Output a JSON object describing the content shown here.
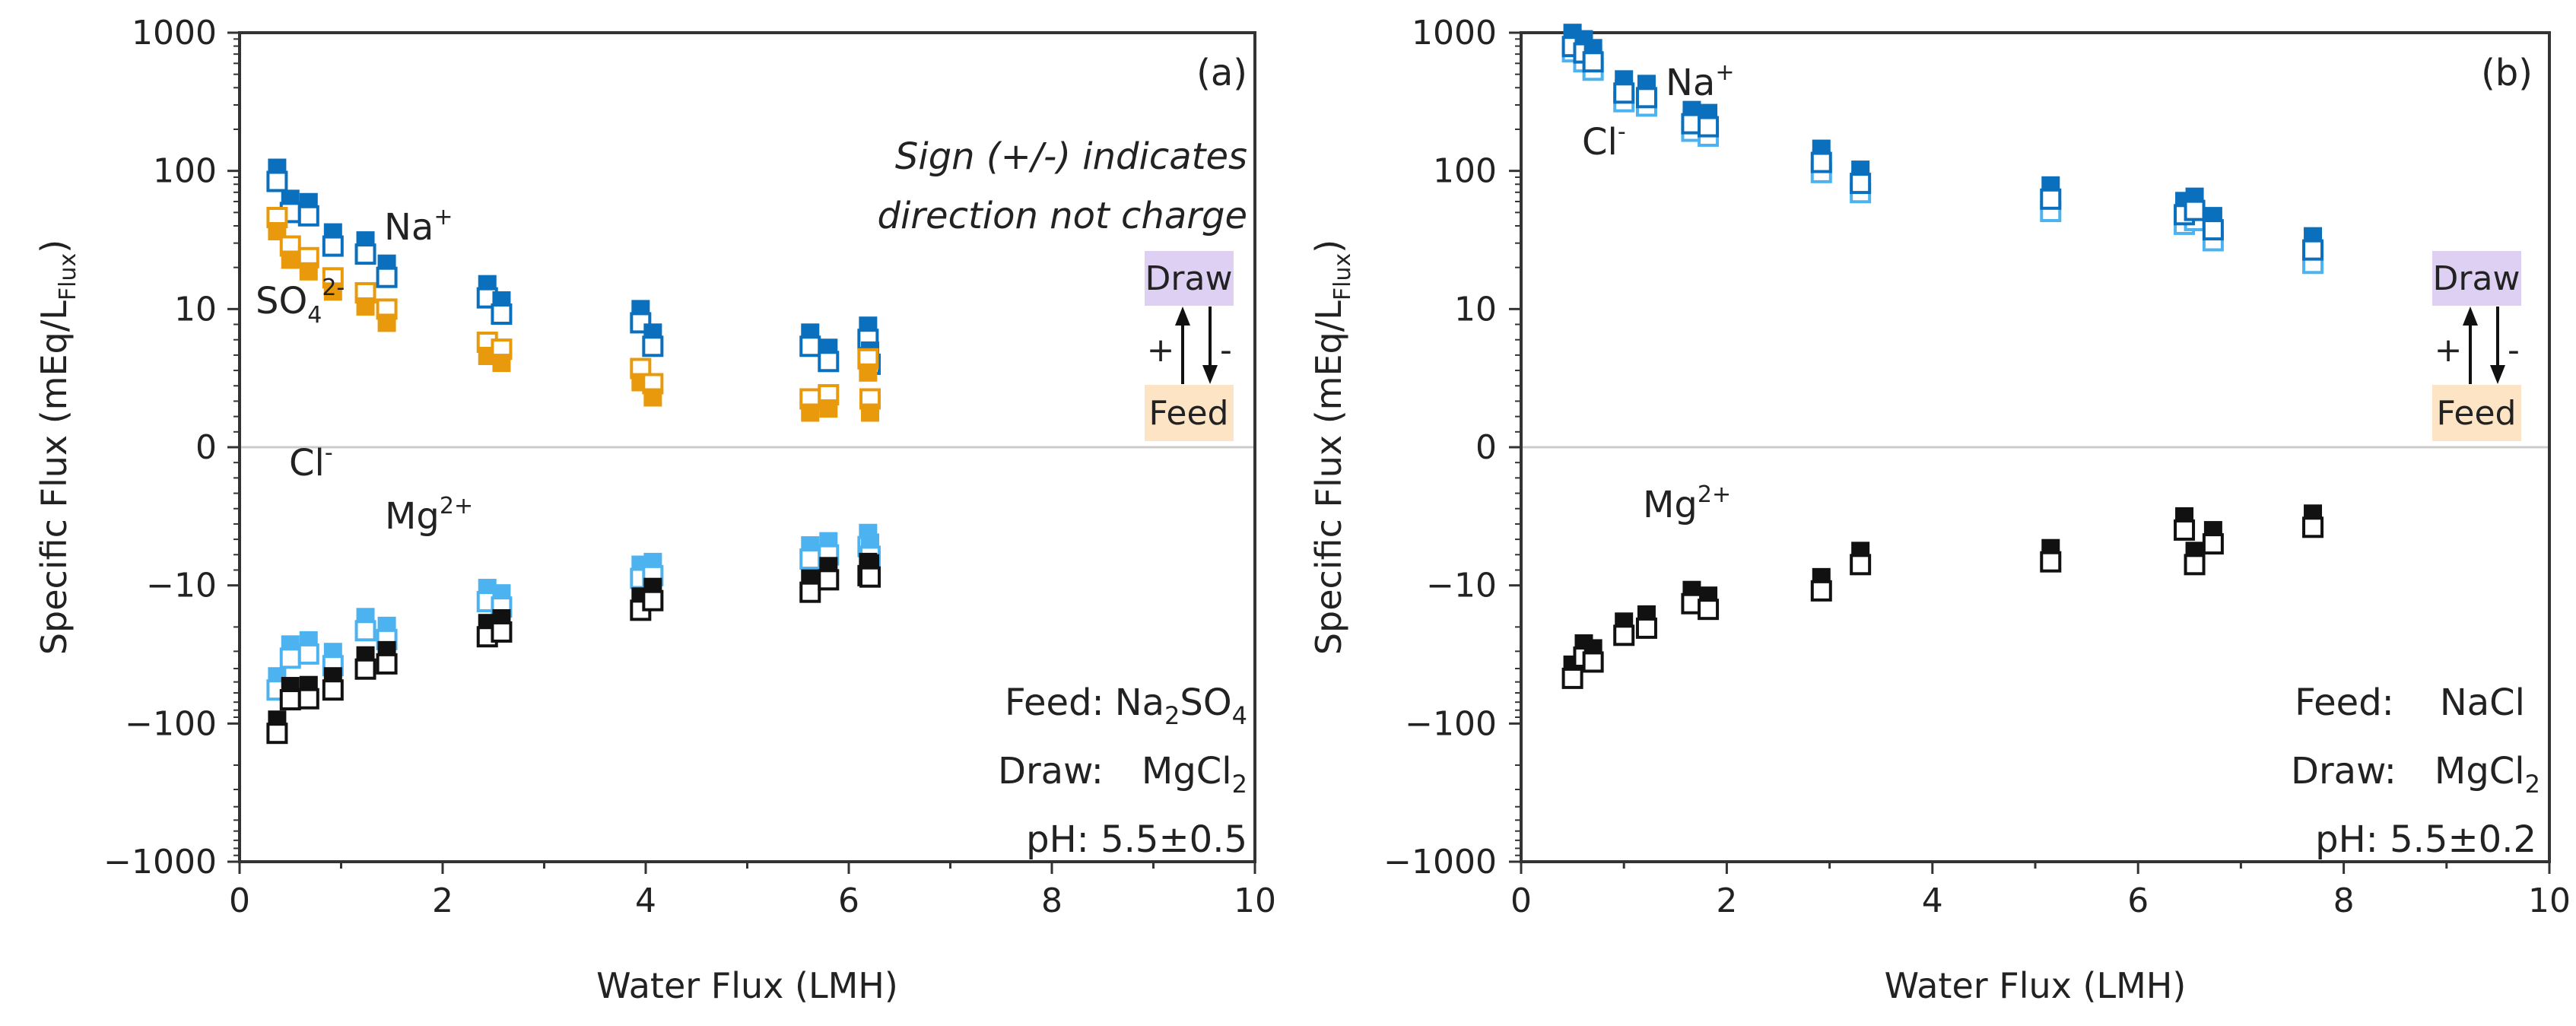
{
  "colors": {
    "na": "#0a6fbd",
    "cl": "#4db3f0",
    "so4": "#e99a0c",
    "mg": "#111111",
    "draw_box": "#ddd0f3",
    "feed_box": "#fde4c4",
    "zero_line": "#cccccc"
  },
  "legend_box": {
    "draw": "Draw",
    "feed": "Feed",
    "plus": "+",
    "minus": "-"
  },
  "chart_data": [
    {
      "type": "scatter",
      "panel": "(a)",
      "xlabel": "Water Flux (LMH)",
      "ylabel": "Specific Flux (mEq/L",
      "ylabel_sub": "Flux",
      "ylabel_end": ")",
      "xlim": [
        0,
        10
      ],
      "xticks": [
        "0",
        "2",
        "4",
        "6",
        "8",
        "10"
      ],
      "yscale": "symlog (linear between -10 and 10)",
      "ylim": [
        -1000,
        1000
      ],
      "yticks": [
        "1000",
        "100",
        "10",
        "0",
        "−10",
        "−100",
        "−1000"
      ],
      "note_line1": "Sign (+/-) indicates",
      "note_line2": "direction not charge",
      "conditions": {
        "feed_label": "Feed:",
        "feed_base": "Na",
        "feed_sub1": "2",
        "feed_mid": "SO",
        "feed_sub2": "4",
        "draw_label": "Draw:",
        "draw_base": "MgCl",
        "draw_sub": "2",
        "ph": "pH: 5.5±0.5"
      },
      "series": [
        {
          "key": "na",
          "name": "Na",
          "sup": "+",
          "filled_top": true,
          "x": [
            0.37,
            0.5,
            0.68,
            0.92,
            1.24,
            1.45,
            2.44,
            2.58,
            3.95,
            4.07,
            5.62,
            5.8,
            6.19,
            6.21
          ],
          "y": [
            94,
            56,
            53,
            32,
            28,
            19,
            13.5,
            10.3,
            9.5,
            7.8,
            7.8,
            6.7,
            8.3,
            6.5
          ]
        },
        {
          "key": "so4",
          "name": "SO",
          "sub": "4",
          "sup": "2-",
          "filled_top": false,
          "x": [
            0.37,
            0.5,
            0.68,
            0.92,
            1.24,
            1.45,
            2.44,
            2.58,
            3.95,
            4.07,
            5.62,
            5.8,
            6.19,
            6.21
          ],
          "y": [
            41,
            25.5,
            21,
            15,
            11.7,
            9.5,
            7.1,
            6.6,
            5.2,
            4.1,
            3.0,
            3.3,
            5.9,
            3.0
          ]
        },
        {
          "key": "cl",
          "name": "Cl",
          "sup": "-",
          "filled_top": true,
          "x": [
            0.37,
            0.5,
            0.68,
            0.92,
            1.24,
            1.45,
            2.44,
            2.58,
            3.95,
            4.07,
            5.62,
            5.8,
            6.19,
            6.21
          ],
          "y": [
            -51,
            -30,
            -28,
            -34,
            -19,
            -22,
            -11.7,
            -12.8,
            -9.0,
            -8.8,
            -7.6,
            -7.3,
            -6.7,
            -7.4
          ]
        },
        {
          "key": "mg",
          "name": "Mg",
          "sup": "2+",
          "filled_top": true,
          "x": [
            0.37,
            0.5,
            0.68,
            0.92,
            1.24,
            1.45,
            2.44,
            2.58,
            3.95,
            4.07,
            5.62,
            5.8,
            6.19,
            6.21
          ],
          "y": [
            -105,
            -60,
            -59,
            -51,
            -36,
            -33,
            -21,
            -19.4,
            -13.5,
            -11.5,
            -10,
            -9.1,
            -8.8,
            -8.9
          ]
        }
      ]
    },
    {
      "type": "scatter",
      "panel": "(b)",
      "xlabel": "Water Flux (LMH)",
      "ylabel": "Specific Flux (mEq/L",
      "ylabel_sub": "Flux",
      "ylabel_end": ")",
      "xlim": [
        0,
        10
      ],
      "xticks": [
        "0",
        "2",
        "4",
        "6",
        "8",
        "10"
      ],
      "yscale": "symlog (linear between -10 and 10)",
      "ylim": [
        -1000,
        1000
      ],
      "yticks": [
        "1000",
        "100",
        "10",
        "0",
        "−10",
        "−100",
        "−1000"
      ],
      "conditions": {
        "feed_label": "Feed:",
        "feed_value": "NaCl",
        "draw_label": "Draw:",
        "draw_base": "MgCl",
        "draw_sub": "2",
        "ph": "pH: 5.5±0.2"
      },
      "series": [
        {
          "key": "cl",
          "name": "Cl",
          "sup": "-",
          "filled_top": true,
          "x": [
            0.5,
            0.61,
            0.7,
            1.0,
            1.22,
            1.66,
            1.82,
            2.92,
            3.3,
            5.15,
            6.45,
            6.55,
            6.73,
            7.7
          ],
          "y": [
            815,
            690,
            600,
            355,
            330,
            217,
            200,
            109,
            78,
            57,
            46,
            49,
            35,
            24
          ]
        },
        {
          "key": "na",
          "name": "Na",
          "sup": "+",
          "filled_top": true,
          "x": [
            0.5,
            0.61,
            0.7,
            1.0,
            1.22,
            1.66,
            1.82,
            2.92,
            3.3,
            5.15,
            6.45,
            6.55,
            6.73,
            7.7
          ],
          "y": [
            890,
            800,
            690,
            410,
            380,
            246,
            234,
            129,
            91,
            70,
            54,
            58,
            42,
            30
          ]
        },
        {
          "key": "mg",
          "name": "Mg",
          "sup": "2+",
          "filled_top": true,
          "x": [
            0.5,
            0.61,
            0.7,
            1.0,
            1.22,
            1.66,
            1.82,
            2.92,
            3.3,
            5.15,
            6.45,
            6.55,
            6.73,
            7.7
          ],
          "y": [
            -42,
            -29.5,
            -32,
            -20.5,
            -18.2,
            -12.1,
            -13.3,
            -9.9,
            -8.0,
            -7.8,
            -5.5,
            -8.0,
            -6.5,
            -5.3
          ]
        }
      ]
    }
  ]
}
